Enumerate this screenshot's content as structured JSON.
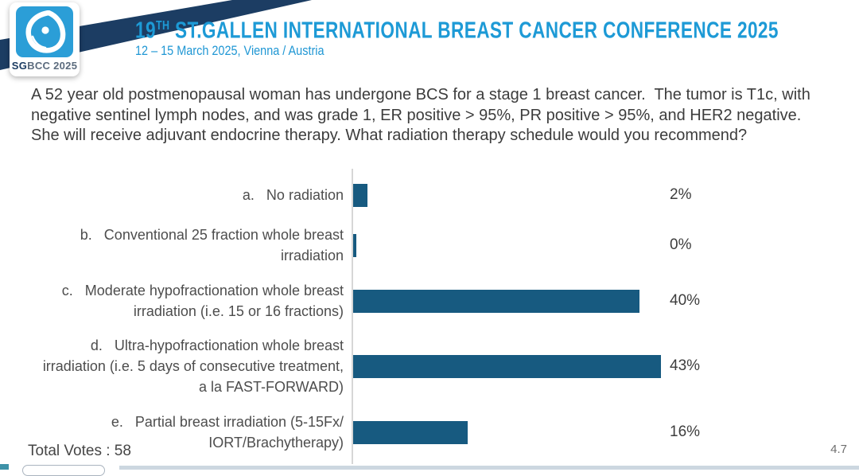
{
  "header": {
    "logo": {
      "sg": "SG",
      "rest": "BCC 2025"
    },
    "title_number": "19",
    "title_sup": "TH",
    "title_rest": " ST.GALLEN INTERNATIONAL BREAST CANCER CONFERENCE 2025",
    "subtitle": "12 – 15 March 2025, Vienna / Austria"
  },
  "question": "A 52 year old postmenopausal woman has undergone BCS for a stage 1 breast cancer.  The tumor is T1c, with negative sentinel lymph nodes, and was grade 1, ER positive > 95%, PR positive > 95%, and HER2 negative.  She will receive adjuvant endocrine therapy. What radiation therapy schedule would you recommend?",
  "chart_data": {
    "type": "bar",
    "orientation": "horizontal",
    "bar_color": "#175A80",
    "xlim": [
      0,
      100
    ],
    "grid": false,
    "legend": "none",
    "categories": [
      "a. No radiation",
      "b. Conventional 25 fraction whole breast irradiation",
      "c. Moderate hypofractionation whole breast irradiation (i.e. 15 or 16 fractions)",
      "d. Ultra-hypofractionation whole breast irradiation (i.e. 5 days of consecutive treatment, a la FAST-FORWARD)",
      "e. Partial breast irradiation (5-15Fx/ IORT/Brachytherapy)"
    ],
    "values": [
      2,
      0,
      40,
      43,
      16
    ],
    "options": [
      {
        "key": "a.",
        "label": "No radiation",
        "value": 2,
        "value_label": "2%"
      },
      {
        "key": "b.",
        "label": "Conventional 25 fraction whole breast irradiation",
        "value": 0,
        "value_label": "0%"
      },
      {
        "key": "c.",
        "label": "Moderate hypofractionation whole breast irradiation (i.e. 15 or 16 fractions)",
        "value": 40,
        "value_label": "40%"
      },
      {
        "key": "d.",
        "label": "Ultra-hypofractionation whole breast irradiation (i.e. 5 days of consecutive treatment, a la FAST-FORWARD)",
        "value": 43,
        "value_label": "43%"
      },
      {
        "key": "e.",
        "label": "Partial breast irradiation (5-15Fx/ IORT/Brachytherapy)",
        "value": 16,
        "value_label": "16%"
      }
    ],
    "total_votes": 58
  },
  "footer": {
    "total_votes_label": "Total Votes : 58",
    "slide_number": "4.7"
  },
  "colors": {
    "title_blue": "#1D9AD6",
    "navy": "#1C3D63",
    "bar_teal": "#175A80",
    "text_gray": "#3C3C3C",
    "axis_gray": "#D6D6D6",
    "bottom_strip": "#CCD7E0"
  }
}
